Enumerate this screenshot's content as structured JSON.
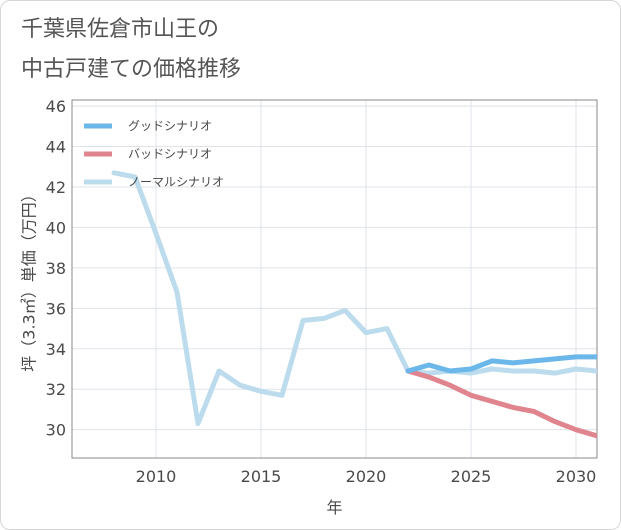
{
  "title_lines": [
    "千葉県佐倉市山王の",
    "中古戸建ての価格推移"
  ],
  "chart_data": {
    "type": "line",
    "title": "千葉県佐倉市山王の中古戸建ての価格推移",
    "xlabel": "年",
    "ylabel": "坪（3.3㎡）単価（万円）",
    "xlim": [
      2006,
      2031
    ],
    "ylim": [
      28.6,
      46.3
    ],
    "x_ticks": [
      2010,
      2015,
      2020,
      2025,
      2030
    ],
    "y_ticks": [
      30,
      32,
      34,
      36,
      38,
      40,
      42,
      44,
      46
    ],
    "grid": true,
    "legend_position": "top-left",
    "series": [
      {
        "name": "グッドシナリオ",
        "color": "#6bb7ea",
        "x": [
          2022,
          2023,
          2024,
          2025,
          2026,
          2027,
          2028,
          2029,
          2030,
          2031
        ],
        "values": [
          32.9,
          33.2,
          32.9,
          33.0,
          33.4,
          33.3,
          33.4,
          33.5,
          33.6,
          33.6
        ]
      },
      {
        "name": "バッドシナリオ",
        "color": "#e0848e",
        "x": [
          2022,
          2023,
          2024,
          2025,
          2026,
          2027,
          2028,
          2029,
          2030,
          2031
        ],
        "values": [
          32.9,
          32.6,
          32.2,
          31.7,
          31.4,
          31.1,
          30.9,
          30.4,
          30.0,
          29.7
        ]
      },
      {
        "name": "ノーマルシナリオ",
        "color": "#bcdcee",
        "x": [
          2008,
          2009,
          2010,
          2011,
          2012,
          2013,
          2014,
          2015,
          2016,
          2017,
          2018,
          2019,
          2020,
          2021,
          2022,
          2023,
          2024,
          2025,
          2026,
          2027,
          2028,
          2029,
          2030,
          2031
        ],
        "values": [
          42.7,
          42.5,
          39.7,
          36.8,
          30.3,
          32.9,
          32.2,
          31.9,
          31.7,
          35.4,
          35.5,
          35.9,
          34.8,
          35.0,
          32.9,
          32.8,
          32.9,
          32.8,
          33.0,
          32.9,
          32.9,
          32.8,
          33.0,
          32.9
        ]
      }
    ]
  }
}
